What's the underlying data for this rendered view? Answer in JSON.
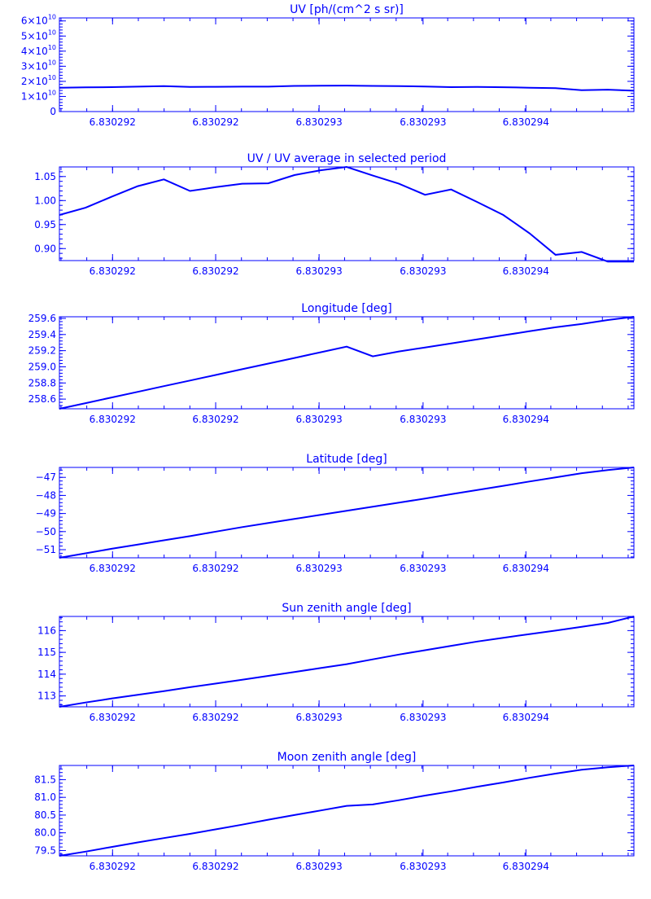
{
  "colors": {
    "ink": "#0000ff",
    "background": "#ffffff"
  },
  "chart_data": [
    {
      "type": "line",
      "title": "UV [ph/(cm^2 s sr)]",
      "xlabel": "",
      "ylabel": "",
      "xlim": [
        0,
        22
      ],
      "ylim": [
        0,
        62000000000.0
      ],
      "x": [
        0,
        1,
        2,
        3,
        4,
        5,
        6,
        7,
        8,
        9,
        10,
        11,
        12,
        13,
        14,
        15,
        16,
        17,
        18,
        19,
        20,
        21,
        22
      ],
      "values": [
        15800000000.0,
        16000000000.0,
        16200000000.0,
        16500000000.0,
        16800000000.0,
        16300000000.0,
        16400000000.0,
        16500000000.0,
        16500000000.0,
        17000000000.0,
        17100000000.0,
        17200000000.0,
        17000000000.0,
        16800000000.0,
        16600000000.0,
        16200000000.0,
        16300000000.0,
        16100000000.0,
        15800000000.0,
        15500000000.0,
        14200000000.0,
        14500000000.0,
        13800000000.0
      ],
      "yticks": [
        0,
        10000000000.0,
        20000000000.0,
        30000000000.0,
        40000000000.0,
        50000000000.0,
        60000000000.0
      ],
      "ytick_labels": [
        {
          "base": "0",
          "exp": ""
        },
        {
          "base": "1×10",
          "exp": "10"
        },
        {
          "base": "2×10",
          "exp": "10"
        },
        {
          "base": "3×10",
          "exp": "10"
        },
        {
          "base": "4×10",
          "exp": "10"
        },
        {
          "base": "5×10",
          "exp": "10"
        },
        {
          "base": "6×10",
          "exp": "10"
        }
      ],
      "xtick_labels": [
        "6.830292",
        "6.830292",
        "6.830293",
        "6.830293",
        "6.830294"
      ]
    },
    {
      "type": "line",
      "title": "UV / UV average in selected period",
      "xlabel": "",
      "ylabel": "",
      "xlim": [
        0,
        22
      ],
      "ylim": [
        0.875,
        1.07
      ],
      "x": [
        0,
        1,
        2,
        3,
        4,
        5,
        6,
        7,
        8,
        9,
        10,
        11,
        12,
        13,
        14,
        15,
        16,
        17,
        18,
        19,
        20,
        21,
        22
      ],
      "values": [
        0.97,
        0.985,
        1.008,
        1.03,
        1.044,
        1.02,
        1.028,
        1.035,
        1.036,
        1.053,
        1.063,
        1.07,
        1.052,
        1.035,
        1.012,
        1.023,
        0.997,
        0.97,
        0.932,
        0.887,
        0.893,
        0.873,
        0.873
      ],
      "yticks": [
        0.9,
        0.95,
        1.0,
        1.05
      ],
      "ytick_labels": [
        "0.90",
        "0.95",
        "1.00",
        "1.05"
      ],
      "xtick_labels": [
        "6.830292",
        "6.830292",
        "6.830293",
        "6.830293",
        "6.830294"
      ]
    },
    {
      "type": "line",
      "title": "Longitude [deg]",
      "xlabel": "",
      "ylabel": "",
      "xlim": [
        0,
        22
      ],
      "ylim": [
        258.48,
        259.62
      ],
      "x": [
        0,
        1,
        2,
        3,
        4,
        5,
        6,
        7,
        8,
        9,
        10,
        11,
        12,
        13,
        14,
        15,
        16,
        17,
        18,
        19,
        20,
        21,
        22
      ],
      "values": [
        258.48,
        258.55,
        258.62,
        258.69,
        258.76,
        258.83,
        258.9,
        258.97,
        259.04,
        259.11,
        259.18,
        259.25,
        259.13,
        259.19,
        259.24,
        259.29,
        259.34,
        259.39,
        259.44,
        259.49,
        259.53,
        259.58,
        259.62
      ],
      "yticks": [
        258.6,
        258.8,
        259.0,
        259.2,
        259.4,
        259.6
      ],
      "ytick_labels": [
        "258.6",
        "258.8",
        "259.0",
        "259.2",
        "259.4",
        "259.6"
      ],
      "xtick_labels": [
        "6.830292",
        "6.830292",
        "6.830293",
        "6.830293",
        "6.830294"
      ]
    },
    {
      "type": "line",
      "title": "Latitude [deg]",
      "xlabel": "",
      "ylabel": "",
      "xlim": [
        0,
        22
      ],
      "ylim": [
        -51.45,
        -46.45
      ],
      "x": [
        0,
        1,
        2,
        3,
        4,
        5,
        6,
        7,
        8,
        9,
        10,
        11,
        12,
        13,
        14,
        15,
        16,
        17,
        18,
        19,
        20,
        21,
        22
      ],
      "values": [
        -51.45,
        -51.2,
        -50.95,
        -50.72,
        -50.48,
        -50.25,
        -50.0,
        -49.75,
        -49.52,
        -49.3,
        -49.07,
        -48.85,
        -48.62,
        -48.4,
        -48.17,
        -47.93,
        -47.7,
        -47.47,
        -47.23,
        -47.0,
        -46.77,
        -46.6,
        -46.45
      ],
      "yticks": [
        -51,
        -50,
        -49,
        -48,
        -47
      ],
      "ytick_labels": [
        "−51",
        "−50",
        "−49",
        "−48",
        "−47"
      ],
      "xtick_labels": [
        "6.830292",
        "6.830292",
        "6.830293",
        "6.830293",
        "6.830294"
      ]
    },
    {
      "type": "line",
      "title": "Sun zenith angle [deg]",
      "xlabel": "",
      "ylabel": "",
      "xlim": [
        0,
        22
      ],
      "ylim": [
        112.5,
        116.65
      ],
      "x": [
        0,
        1,
        2,
        3,
        4,
        5,
        6,
        7,
        8,
        9,
        10,
        11,
        12,
        13,
        14,
        15,
        16,
        17,
        18,
        19,
        20,
        21,
        22
      ],
      "values": [
        112.5,
        112.7,
        112.88,
        113.05,
        113.22,
        113.4,
        113.57,
        113.74,
        113.92,
        114.1,
        114.28,
        114.46,
        114.68,
        114.9,
        115.1,
        115.3,
        115.5,
        115.67,
        115.84,
        116.0,
        116.17,
        116.35,
        116.65
      ],
      "yticks": [
        113,
        114,
        115,
        116
      ],
      "ytick_labels": [
        "113",
        "114",
        "115",
        "116"
      ],
      "xtick_labels": [
        "6.830292",
        "6.830292",
        "6.830293",
        "6.830293",
        "6.830294"
      ]
    },
    {
      "type": "line",
      "title": "Moon zenith angle [deg]",
      "xlabel": "",
      "ylabel": "",
      "xlim": [
        0,
        22
      ],
      "ylim": [
        79.35,
        81.9
      ],
      "x": [
        0,
        1,
        2,
        3,
        4,
        5,
        6,
        7,
        8,
        9,
        10,
        11,
        12,
        13,
        14,
        15,
        16,
        17,
        18,
        19,
        20,
        21,
        22
      ],
      "values": [
        79.35,
        79.47,
        79.6,
        79.73,
        79.85,
        79.97,
        80.1,
        80.23,
        80.37,
        80.5,
        80.63,
        80.76,
        80.8,
        80.92,
        81.05,
        81.17,
        81.3,
        81.42,
        81.55,
        81.67,
        81.78,
        81.85,
        81.9
      ],
      "yticks": [
        79.5,
        80.0,
        80.5,
        81.0,
        81.5
      ],
      "ytick_labels": [
        "79.5",
        "80.0",
        "80.5",
        "81.0",
        "81.5"
      ],
      "xtick_labels": [
        "6.830292",
        "6.830292",
        "6.830293",
        "6.830293",
        "6.830294"
      ]
    }
  ]
}
